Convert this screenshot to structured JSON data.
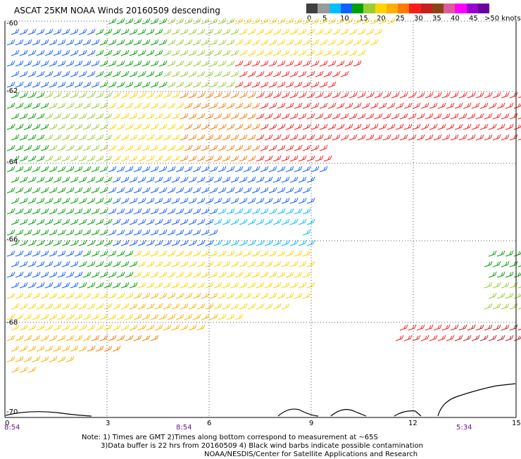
{
  "title": "ASCAT 25KM NOAA Winds 20160509 descending",
  "colorbar": {
    "colors": [
      "#404040",
      "#9a9a9a",
      "#00bfff",
      "#1060ff",
      "#00a000",
      "#9acd32",
      "#ffd400",
      "#ffb000",
      "#ff7b00",
      "#ff1a1a",
      "#c81e1e",
      "#8b4513",
      "#e05aa0",
      "#ff00ff",
      "#9a00d0",
      "#6a00a0"
    ],
    "labels": [
      "0",
      "5",
      "10",
      "15",
      "20",
      "25",
      "30",
      "35",
      "40",
      "45",
      ">50 knots"
    ]
  },
  "axes": {
    "latitude_labels": [
      "-60",
      "-62",
      "-64",
      "-66",
      "-68",
      "-70"
    ],
    "longitude_labels": [
      "0",
      "3",
      "6",
      "9",
      "12",
      "15"
    ],
    "time_labels": [
      "8:54",
      "8:54",
      "5:34"
    ]
  },
  "notes": {
    "line1": "Note:  1) Times are GMT 2)Times along bottom correspond to measurement at ~65S",
    "line2": "3)Data buffer is 22 hrs from 20160509 4) Black wind barbs indicate possible contamination",
    "line3": "NOAA/NESDIS/Center for Satellite Applications and Research"
  }
}
